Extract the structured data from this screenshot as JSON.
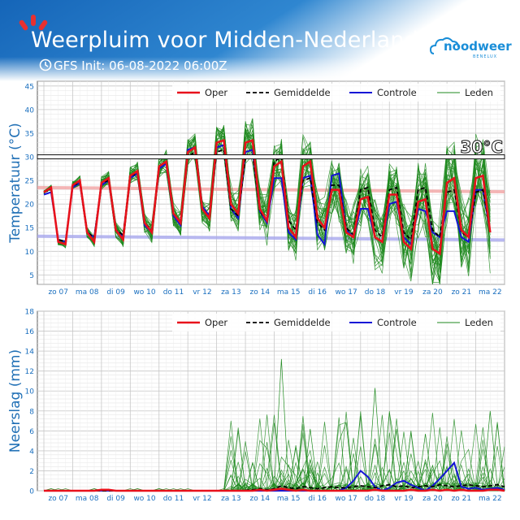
{
  "header": {
    "title": "Weerpluim voor Midden-Nederland",
    "init": "GFS Init: 06-08-2022 06:00Z",
    "logo_main": "noodweer",
    "logo_sub": "BENELUX"
  },
  "colors": {
    "oper": "#e8111b",
    "gemiddelde": "#000000",
    "controle": "#1414d6",
    "leden": "#1f8a1f",
    "axis_label": "#1f6fb5",
    "tick": "#1a6fbf"
  },
  "days": [
    "zo 07",
    "ma 08",
    "di 09",
    "wo 10",
    "do 11",
    "vr 12",
    "za 13",
    "zo 14",
    "ma 15",
    "di 16",
    "wo 17",
    "do 18",
    "vr 19",
    "za 20",
    "zo 21",
    "ma 22"
  ],
  "legend": [
    "Oper",
    "Gemiddelde",
    "Controle",
    "Leden"
  ],
  "chart_data": [
    {
      "type": "line",
      "ylabel": "Temperatuur (°C)",
      "ylim": [
        3,
        46
      ],
      "yticks": [
        5,
        10,
        15,
        20,
        25,
        30,
        35,
        40,
        45
      ],
      "threshold": {
        "value": 30,
        "label": "30°C"
      },
      "climate_max": {
        "from": 23.5,
        "to": 22.6
      },
      "climate_min": {
        "from": 13.2,
        "to": 12.4
      },
      "grid": true,
      "legend_position": "top-right",
      "steps_per_day": 4,
      "series": [
        {
          "name": "Oper",
          "values": [
            22.5,
            23.5,
            12,
            11.5,
            24,
            25,
            14,
            12,
            24.5,
            25.5,
            14.5,
            12.5,
            26,
            27,
            16,
            14,
            28,
            29,
            18,
            16,
            31,
            32,
            19,
            17,
            33,
            33.5,
            20,
            18,
            33,
            33.5,
            19,
            16.5,
            28,
            29,
            15,
            13,
            28,
            29,
            17,
            15,
            23,
            23,
            14,
            13,
            21,
            21.5,
            13,
            12,
            22,
            22,
            12,
            10.5,
            20.5,
            21,
            10.5,
            9.5,
            24.5,
            25.5,
            14.5,
            13,
            25.5,
            26,
            14
          ]
        },
        {
          "name": "Gemiddelde",
          "values": [
            22.5,
            23,
            12.5,
            12,
            24,
            24.5,
            14,
            13,
            24.5,
            25,
            14.5,
            13.5,
            26,
            26.5,
            16,
            14.5,
            28,
            29,
            18,
            16,
            30,
            31,
            19,
            17,
            31,
            31.5,
            19,
            17.5,
            30,
            30.5,
            18.5,
            16.5,
            29,
            30,
            16.5,
            14.5,
            25,
            25.5,
            16,
            14.5,
            24,
            24,
            15,
            13.5,
            23,
            23.5,
            14.5,
            13,
            23,
            23.5,
            14,
            12.5,
            23,
            23.5,
            14.5,
            13,
            22.5,
            23,
            14,
            13,
            22.5,
            23,
            14
          ]
        },
        {
          "name": "Controle",
          "values": [
            22,
            22.5,
            12.5,
            12,
            23.5,
            24.5,
            14,
            13,
            24,
            25,
            14.5,
            13,
            25.5,
            26.5,
            15.5,
            14,
            27.5,
            28.5,
            17.5,
            15.5,
            31.5,
            32,
            19.5,
            17.5,
            32,
            32.5,
            19,
            17,
            31,
            31.5,
            18.5,
            16,
            25.5,
            25.5,
            14,
            12.5,
            25.5,
            26,
            13.5,
            11.5,
            26,
            26.5,
            14.5,
            13,
            19,
            19,
            13,
            12,
            20,
            20.5,
            13,
            11.5,
            19,
            18.5,
            14,
            13,
            18.5,
            18.5,
            13,
            12,
            23,
            23,
            14
          ]
        },
        {
          "name": "Leden",
          "note": "31 members",
          "values": []
        }
      ]
    },
    {
      "type": "line",
      "ylabel": "Neerslag (mm)",
      "ylim": [
        0,
        18
      ],
      "yticks": [
        0,
        2,
        4,
        6,
        8,
        10,
        12,
        14,
        16,
        18
      ],
      "grid": true,
      "legend_position": "top-right",
      "steps_per_day": 4,
      "series": [
        {
          "name": "Oper",
          "values": [
            0,
            0,
            0,
            0,
            0,
            0,
            0,
            0,
            0.1,
            0.1,
            0,
            0,
            0,
            0,
            0,
            0,
            0,
            0,
            0,
            0,
            0,
            0,
            0,
            0,
            0,
            0,
            0,
            0,
            0,
            0,
            0.1,
            0,
            0.1,
            0.2,
            0.1,
            0,
            0.1,
            0,
            0,
            0,
            0,
            0,
            0,
            0,
            0,
            0,
            0.1,
            0,
            0,
            0,
            0,
            0.1,
            0,
            0,
            0.1,
            0,
            0.1,
            0,
            0.1,
            0,
            0,
            0,
            0.1,
            0.1,
            0
          ]
        },
        {
          "name": "Gemiddelde",
          "values": [
            0,
            0,
            0,
            0,
            0,
            0,
            0,
            0,
            0,
            0,
            0,
            0,
            0,
            0,
            0,
            0,
            0,
            0,
            0,
            0,
            0,
            0,
            0,
            0,
            0,
            0,
            0,
            0,
            0.05,
            0.1,
            0.2,
            0.1,
            0.2,
            0.5,
            0.3,
            0.2,
            0.4,
            0.3,
            0.2,
            0.3,
            0.4,
            0.3,
            0.3,
            0.4,
            0.5,
            0.4,
            0.3,
            0.5,
            0.6,
            0.4,
            0.5,
            0.3,
            0.4,
            0.5,
            0.4,
            0.6,
            0.5,
            0.4,
            0.5,
            0.6,
            0.5,
            0.4,
            0.5,
            0.6,
            0.4
          ]
        },
        {
          "name": "Controle",
          "values": [
            0,
            0,
            0,
            0,
            0,
            0,
            0,
            0,
            0,
            0,
            0,
            0,
            0,
            0,
            0,
            0,
            0,
            0,
            0,
            0,
            0,
            0,
            0,
            0,
            0,
            0,
            0,
            0,
            0,
            0,
            0,
            0,
            0,
            0,
            0,
            0,
            0,
            0,
            0,
            0,
            0,
            0,
            0.3,
            1.0,
            2.0,
            1.4,
            0.4,
            0,
            0.3,
            0.8,
            1.0,
            0.6,
            0.3,
            0,
            0.5,
            1.2,
            2.0,
            2.8,
            0.4,
            0.2,
            0.3,
            0.1,
            0.2,
            0.3,
            0.1
          ]
        },
        {
          "name": "Leden",
          "note": "31 members",
          "values": []
        }
      ]
    }
  ]
}
